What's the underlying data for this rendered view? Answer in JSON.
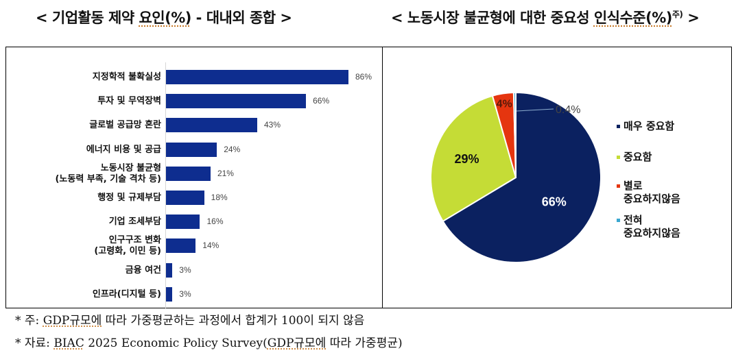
{
  "titles": {
    "left": {
      "open": "< ",
      "main": "기업활동 제약 ",
      "underlined": "요인(%)",
      "rest": " - 대내외 종합",
      "close": " >"
    },
    "right": {
      "open": "< ",
      "main": "노동시장 불균형에 대한 중요성 ",
      "underlined": "인식수준(%)",
      "sup": "주)",
      "close": " >"
    }
  },
  "chart_data": [
    {
      "type": "bar",
      "orientation": "horizontal",
      "title": "< 기업활동 제약 요인(%) - 대내외 종합 >",
      "categories": [
        "지정학적 불확실성",
        "투자 및 무역장벽",
        "글로벌 공급망 혼란",
        "에너지 비용 및 공급",
        "노동시장 불균형 (노동력 부족, 기술 격차 등)",
        "행정 및 규제부담",
        "기업 조세부담",
        "인구구조 변화 (고령화, 이민 등)",
        "금융 여건",
        "인프라(디지털 등)"
      ],
      "values": [
        86,
        66,
        43,
        24,
        21,
        18,
        16,
        14,
        3,
        3
      ],
      "value_labels": [
        "86%",
        "66%",
        "43%",
        "24%",
        "21%",
        "18%",
        "16%",
        "14%",
        "3%",
        "3%"
      ],
      "label_lines": [
        [
          "지정학적 불확실성"
        ],
        [
          "투자 및 무역장벽"
        ],
        [
          "글로벌 공급망 혼란"
        ],
        [
          "에너지 비용 및 공급"
        ],
        [
          "노동시장 불균형",
          "(노동력 부족, 기술 격차 등)"
        ],
        [
          "행정 및 규제부담"
        ],
        [
          "기업 조세부담"
        ],
        [
          "인구구조 변화",
          "(고령화, 이민 등)"
        ],
        [
          "금융 여건"
        ],
        [
          "인프라(디지털 등)"
        ]
      ],
      "bar_color": "#0e2d8f",
      "xlabel": "",
      "ylabel": "",
      "xlim": [
        0,
        100
      ],
      "grid": false,
      "legend": null
    },
    {
      "type": "pie",
      "title": "< 노동시장 불균형에 대한 중요성 인식수준(%)주) >",
      "categories": [
        "매우 중요함",
        "중요함",
        "별로 중요하지않음",
        "전혀 중요하지않음"
      ],
      "values": [
        66,
        29,
        4,
        0.4
      ],
      "value_labels": [
        "66%",
        "29%",
        "4%",
        "0.4%"
      ],
      "colors": [
        "#0b2160",
        "#c5dc36",
        "#e5350f",
        "#3aa7d0"
      ],
      "legend_position": "right",
      "legend_lines": [
        [
          "매우 중요함"
        ],
        [
          "중요함"
        ],
        [
          "별로",
          "중요하지않음"
        ],
        [
          "전혀",
          "중요하지않음"
        ]
      ]
    }
  ],
  "notes": {
    "note1_prefix": "* 주: ",
    "note1_ul": "GDP규모에",
    "note1_rest": " 따라 가중평균하는 과정에서 합계가 100이 되지 않음",
    "note2_prefix": "* 자료: ",
    "note2_ul1": "BIAC",
    "note2_mid": " 2025 Economic Policy Survey(",
    "note2_ul2": "GDP규모에",
    "note2_rest": " 따라 가중평균)"
  }
}
